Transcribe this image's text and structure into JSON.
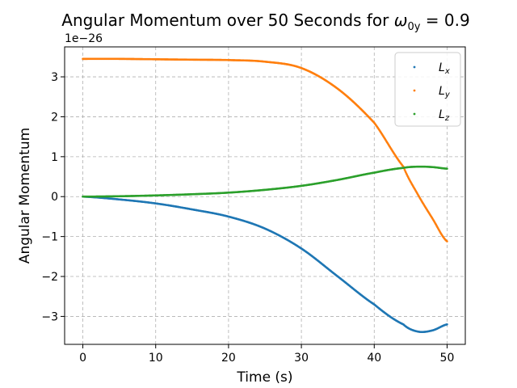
{
  "chart_data": {
    "type": "scatter",
    "title_text": "Angular Momentum over 50 Seconds for ",
    "title_math_base": "ω",
    "title_math_sub": "0y",
    "title_math_rest": " = 0.9",
    "xlabel": "Time (s)",
    "ylabel": "Angular Momentum",
    "offset_text": "1e−26",
    "xlim": [
      -2.5,
      52.5
    ],
    "ylim": [
      -3.7,
      3.75
    ],
    "grid": true,
    "legend_position": "top-right",
    "x_ticks": [
      0,
      10,
      20,
      30,
      40,
      50
    ],
    "y_ticks": [
      -3,
      -2,
      -1,
      0,
      1,
      2,
      3
    ],
    "x_tick_labels": [
      "0",
      "10",
      "20",
      "30",
      "40",
      "50"
    ],
    "y_tick_labels": [
      "−3",
      "−2",
      "−1",
      "0",
      "1",
      "2",
      "3"
    ],
    "x": [
      0,
      5,
      10,
      15,
      20,
      25,
      30,
      35,
      40,
      44,
      46,
      48,
      50
    ],
    "series": [
      {
        "name": "L_x",
        "label_base": "L",
        "label_sub": "x",
        "color": "#1f77b4",
        "values": [
          0.0,
          -0.07,
          -0.17,
          -0.32,
          -0.5,
          -0.8,
          -1.3,
          -2.0,
          -2.7,
          -3.2,
          -3.38,
          -3.35,
          -3.2
        ]
      },
      {
        "name": "L_y",
        "label_base": "L",
        "label_sub": "y",
        "color": "#ff7f0e",
        "values": [
          3.45,
          3.45,
          3.44,
          3.43,
          3.42,
          3.38,
          3.22,
          2.7,
          1.85,
          0.75,
          0.05,
          -0.55,
          -1.12
        ]
      },
      {
        "name": "L_z",
        "label_base": "L",
        "label_sub": "z",
        "color": "#2ca02c",
        "values": [
          0.0,
          0.01,
          0.03,
          0.06,
          0.1,
          0.17,
          0.27,
          0.42,
          0.6,
          0.72,
          0.75,
          0.74,
          0.7
        ]
      }
    ]
  }
}
